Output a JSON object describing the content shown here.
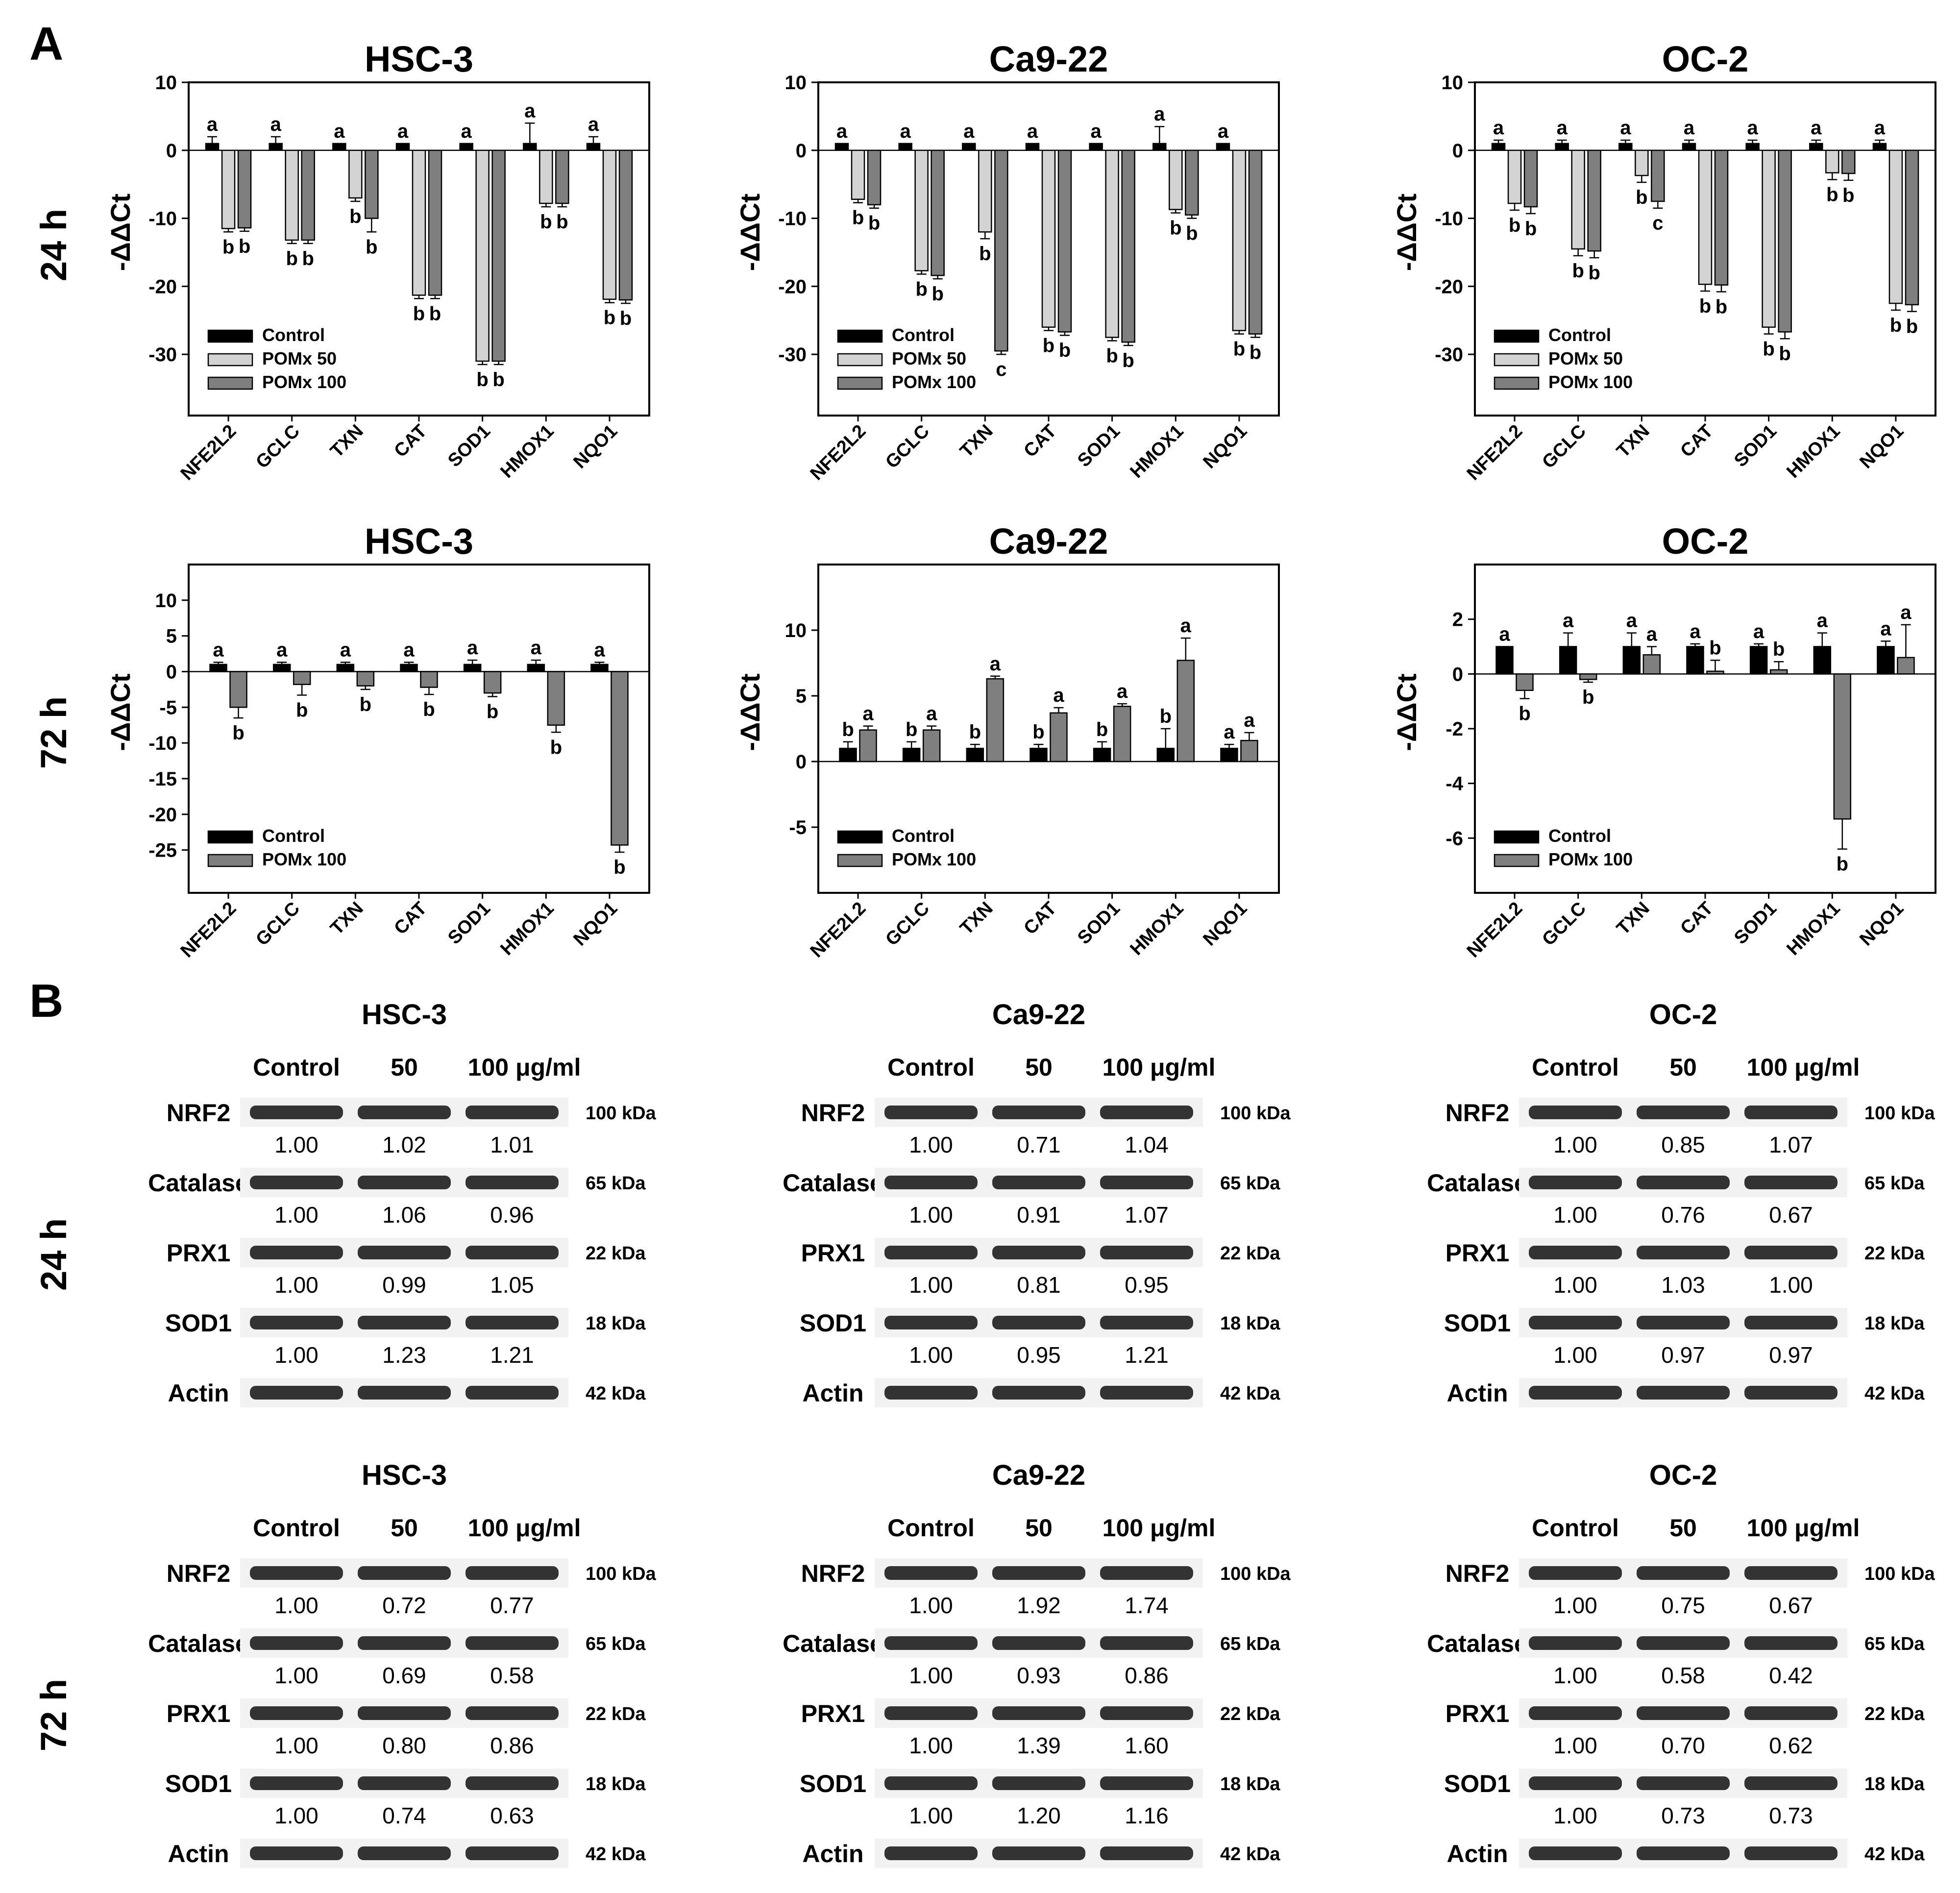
{
  "panels": {
    "a": "A",
    "b": "B"
  },
  "row_labels": {
    "h24": "24 h",
    "h72": "72 h"
  },
  "colors": {
    "control": "#000000",
    "pomx50": "#d3d3d3",
    "pomx100": "#7f7f7f",
    "axis": "#000000"
  },
  "chart_data": [
    {
      "type": "bar",
      "title": "HSC-3",
      "time": "24 h",
      "ylabel": "-ΔΔCt",
      "categories": [
        "NFE2L2",
        "GCLC",
        "TXN",
        "CAT",
        "SOD1",
        "HMOX1",
        "NQO1"
      ],
      "ylim": [
        -39,
        10
      ],
      "yticks": [
        10,
        0,
        -10,
        -20,
        -30
      ],
      "series": [
        {
          "name": "Control",
          "values": [
            1,
            1,
            1,
            1,
            1,
            1,
            1
          ],
          "errors": [
            1,
            1,
            0,
            0,
            0,
            3,
            1
          ],
          "letters": [
            "a",
            "a",
            "a",
            "a",
            "a",
            "a",
            "a"
          ]
        },
        {
          "name": "POMx 50",
          "values": [
            -11.5,
            -13.2,
            -7.0,
            -21.3,
            -31.0,
            -7.8,
            -21.9
          ],
          "errors": [
            0.5,
            0.5,
            0.5,
            0.5,
            0.5,
            0.5,
            0.5
          ],
          "letters": [
            "b",
            "b",
            "b",
            "b",
            "b",
            "b",
            "b"
          ]
        },
        {
          "name": "POMx 100",
          "values": [
            -11.4,
            -13.2,
            -10.0,
            -21.3,
            -31.0,
            -7.8,
            -22.0
          ],
          "errors": [
            0.5,
            0.5,
            2.0,
            0.5,
            0.5,
            0.5,
            0.5
          ],
          "letters": [
            "b",
            "b",
            "b",
            "b",
            "b",
            "b",
            "b"
          ]
        }
      ],
      "legend": [
        "Control",
        "POMx 50",
        "POMx 100"
      ]
    },
    {
      "type": "bar",
      "title": "Ca9-22",
      "time": "24 h",
      "ylabel": "-ΔΔCt",
      "categories": [
        "NFE2L2",
        "GCLC",
        "TXN",
        "CAT",
        "SOD1",
        "HMOX1",
        "NQO1"
      ],
      "ylim": [
        -39,
        10
      ],
      "yticks": [
        10,
        0,
        -10,
        -20,
        -30
      ],
      "series": [
        {
          "name": "Control",
          "values": [
            1,
            1,
            1,
            1,
            1,
            1,
            1
          ],
          "errors": [
            0,
            0,
            0,
            0,
            0,
            2.5,
            0
          ],
          "letters": [
            "a",
            "a",
            "a",
            "a",
            "a",
            "a",
            "a"
          ]
        },
        {
          "name": "POMx 50",
          "values": [
            -7.2,
            -17.7,
            -12.0,
            -26.0,
            -27.5,
            -8.7,
            -26.5
          ],
          "errors": [
            0.5,
            0.5,
            1.0,
            0.5,
            0.5,
            0.5,
            0.5
          ],
          "letters": [
            "b",
            "b",
            "b",
            "b",
            "b",
            "b",
            "b"
          ]
        },
        {
          "name": "POMx 100",
          "values": [
            -8.0,
            -18.4,
            -29.5,
            -26.7,
            -28.2,
            -9.5,
            -27.0
          ],
          "errors": [
            0.5,
            0.5,
            0.5,
            0.5,
            0.5,
            0.5,
            0.5
          ],
          "letters": [
            "b",
            "b",
            "c",
            "b",
            "b",
            "b",
            "b"
          ]
        }
      ],
      "legend": [
        "Control",
        "POMx 50",
        "POMx 100"
      ]
    },
    {
      "type": "bar",
      "title": "OC-2",
      "time": "24 h",
      "ylabel": "-ΔΔCt",
      "categories": [
        "NFE2L2",
        "GCLC",
        "TXN",
        "CAT",
        "SOD1",
        "HMOX1",
        "NQO1"
      ],
      "ylim": [
        -39,
        10
      ],
      "yticks": [
        10,
        0,
        -10,
        -20,
        -30
      ],
      "series": [
        {
          "name": "Control",
          "values": [
            1,
            1,
            1,
            1,
            1,
            1,
            1
          ],
          "errors": [
            0.5,
            0.5,
            0.5,
            0.5,
            0.5,
            0.5,
            0.5
          ],
          "letters": [
            "a",
            "a",
            "a",
            "a",
            "a",
            "a",
            "a"
          ]
        },
        {
          "name": "POMx 50",
          "values": [
            -7.8,
            -14.5,
            -3.7,
            -19.7,
            -26.0,
            -3.3,
            -22.5
          ],
          "errors": [
            1.0,
            1.0,
            1.0,
            1.0,
            1.0,
            1.0,
            1.0
          ],
          "letters": [
            "b",
            "b",
            "b",
            "b",
            "b",
            "b",
            "b"
          ]
        },
        {
          "name": "POMx 100",
          "values": [
            -8.3,
            -14.8,
            -7.5,
            -19.8,
            -26.7,
            -3.4,
            -22.7
          ],
          "errors": [
            1.0,
            1.0,
            1.0,
            1.0,
            1.0,
            1.0,
            1.0
          ],
          "letters": [
            "b",
            "b",
            "c",
            "b",
            "b",
            "b",
            "b"
          ]
        }
      ],
      "legend": [
        "Control",
        "POMx 50",
        "POMx 100"
      ]
    },
    {
      "type": "bar",
      "title": "HSC-3",
      "time": "72 h",
      "ylabel": "-ΔΔCt",
      "categories": [
        "NFE2L2",
        "GCLC",
        "TXN",
        "CAT",
        "SOD1",
        "HMOX1",
        "NQO1"
      ],
      "ylim": [
        -31,
        15
      ],
      "yticks": [
        10,
        5,
        0,
        -5,
        -10,
        -15,
        -20,
        -25
      ],
      "series": [
        {
          "name": "Control",
          "values": [
            1,
            1,
            1,
            1,
            1,
            1,
            1
          ],
          "errors": [
            0.3,
            0.3,
            0.3,
            0.3,
            0.6,
            0.6,
            0.3
          ],
          "letters": [
            "a",
            "a",
            "a",
            "a",
            "a",
            "a",
            "a"
          ]
        },
        {
          "name": "POMx 100",
          "values": [
            -5.0,
            -1.8,
            -2.0,
            -2.2,
            -3.0,
            -7.5,
            -24.3
          ],
          "errors": [
            1.5,
            1.5,
            0.5,
            1.0,
            0.5,
            1.0,
            1.0
          ],
          "letters": [
            "b",
            "b",
            "b",
            "b",
            "b",
            "b",
            "b"
          ]
        }
      ],
      "legend": [
        "Control",
        "POMx 100"
      ]
    },
    {
      "type": "bar",
      "title": "Ca9-22",
      "time": "72 h",
      "ylabel": "-ΔΔCt",
      "categories": [
        "NFE2L2",
        "GCLC",
        "TXN",
        "CAT",
        "SOD1",
        "HMOX1",
        "NQO1"
      ],
      "ylim": [
        -10,
        15
      ],
      "yticks": [
        10,
        5,
        0,
        -5
      ],
      "series": [
        {
          "name": "Control",
          "values": [
            1,
            1,
            1,
            1,
            1,
            1,
            1
          ],
          "errors": [
            0.5,
            0.5,
            0.3,
            0.3,
            0.5,
            1.5,
            0.3
          ],
          "letters": [
            "b",
            "b",
            "b",
            "b",
            "b",
            "b",
            "a"
          ]
        },
        {
          "name": "POMx 100",
          "values": [
            2.4,
            2.4,
            6.3,
            3.7,
            4.2,
            7.7,
            1.6
          ],
          "errors": [
            0.3,
            0.3,
            0.2,
            0.4,
            0.2,
            1.7,
            0.6
          ],
          "letters": [
            "a",
            "a",
            "a",
            "a",
            "a",
            "a",
            "a"
          ]
        }
      ],
      "legend": [
        "Control",
        "POMx 100"
      ]
    },
    {
      "type": "bar",
      "title": "OC-2",
      "time": "72 h",
      "ylabel": "-ΔΔCt",
      "categories": [
        "NFE2L2",
        "GCLC",
        "TXN",
        "CAT",
        "SOD1",
        "HMOX1",
        "NQO1"
      ],
      "ylim": [
        -8,
        4
      ],
      "yticks": [
        2,
        0,
        -2,
        -4,
        -6
      ],
      "series": [
        {
          "name": "Control",
          "values": [
            1,
            1,
            1,
            1,
            1,
            1,
            1
          ],
          "errors": [
            0,
            0.5,
            0.5,
            0.1,
            0.1,
            0.5,
            0.2
          ],
          "letters": [
            "a",
            "a",
            "a",
            "a",
            "a",
            "a",
            "a"
          ]
        },
        {
          "name": "POMx 100",
          "values": [
            -0.6,
            -0.2,
            0.7,
            0.1,
            0.15,
            -5.3,
            0.6
          ],
          "errors": [
            0.3,
            0.1,
            0.3,
            0.4,
            0.3,
            1.1,
            1.2
          ],
          "letters": [
            "b",
            "b",
            "a",
            "b",
            "b",
            "b",
            "a"
          ]
        }
      ],
      "legend": [
        "Control",
        "POMx 100"
      ]
    }
  ],
  "blots": [
    {
      "cell_line": "HSC-3",
      "time": "24 h",
      "header": [
        "Control",
        "50",
        "100 μg/ml"
      ],
      "rows": [
        {
          "protein": "NRF2",
          "kda": "100 kDa",
          "values": [
            "1.00",
            "1.02",
            "1.01"
          ]
        },
        {
          "protein": "Catalase",
          "kda": "65 kDa",
          "values": [
            "1.00",
            "1.06",
            "0.96"
          ]
        },
        {
          "protein": "PRX1",
          "kda": "22 kDa",
          "values": [
            "1.00",
            "0.99",
            "1.05"
          ]
        },
        {
          "protein": "SOD1",
          "kda": "18 kDa",
          "values": [
            "1.00",
            "1.23",
            "1.21"
          ]
        },
        {
          "protein": "Actin",
          "kda": "42 kDa",
          "values": []
        }
      ]
    },
    {
      "cell_line": "Ca9-22",
      "time": "24 h",
      "header": [
        "Control",
        "50",
        "100 μg/ml"
      ],
      "rows": [
        {
          "protein": "NRF2",
          "kda": "100 kDa",
          "values": [
            "1.00",
            "0.71",
            "1.04"
          ]
        },
        {
          "protein": "Catalase",
          "kda": "65 kDa",
          "values": [
            "1.00",
            "0.91",
            "1.07"
          ]
        },
        {
          "protein": "PRX1",
          "kda": "22 kDa",
          "values": [
            "1.00",
            "0.81",
            "0.95"
          ]
        },
        {
          "protein": "SOD1",
          "kda": "18 kDa",
          "values": [
            "1.00",
            "0.95",
            "1.21"
          ]
        },
        {
          "protein": "Actin",
          "kda": "42 kDa",
          "values": []
        }
      ]
    },
    {
      "cell_line": "OC-2",
      "time": "24 h",
      "header": [
        "Control",
        "50",
        "100 μg/ml"
      ],
      "rows": [
        {
          "protein": "NRF2",
          "kda": "100 kDa",
          "values": [
            "1.00",
            "0.85",
            "1.07"
          ]
        },
        {
          "protein": "Catalase",
          "kda": "65 kDa",
          "values": [
            "1.00",
            "0.76",
            "0.67"
          ]
        },
        {
          "protein": "PRX1",
          "kda": "22 kDa",
          "values": [
            "1.00",
            "1.03",
            "1.00"
          ]
        },
        {
          "protein": "SOD1",
          "kda": "18 kDa",
          "values": [
            "1.00",
            "0.97",
            "0.97"
          ]
        },
        {
          "protein": "Actin",
          "kda": "42 kDa",
          "values": []
        }
      ]
    },
    {
      "cell_line": "HSC-3",
      "time": "72 h",
      "header": [
        "Control",
        "50",
        "100 μg/ml"
      ],
      "rows": [
        {
          "protein": "NRF2",
          "kda": "100 kDa",
          "values": [
            "1.00",
            "0.72",
            "0.77"
          ]
        },
        {
          "protein": "Catalase",
          "kda": "65 kDa",
          "values": [
            "1.00",
            "0.69",
            "0.58"
          ]
        },
        {
          "protein": "PRX1",
          "kda": "22 kDa",
          "values": [
            "1.00",
            "0.80",
            "0.86"
          ]
        },
        {
          "protein": "SOD1",
          "kda": "18 kDa",
          "values": [
            "1.00",
            "0.74",
            "0.63"
          ]
        },
        {
          "protein": "Actin",
          "kda": "42 kDa",
          "values": []
        }
      ]
    },
    {
      "cell_line": "Ca9-22",
      "time": "72 h",
      "header": [
        "Control",
        "50",
        "100 μg/ml"
      ],
      "rows": [
        {
          "protein": "NRF2",
          "kda": "100 kDa",
          "values": [
            "1.00",
            "1.92",
            "1.74"
          ]
        },
        {
          "protein": "Catalase",
          "kda": "65 kDa",
          "values": [
            "1.00",
            "0.93",
            "0.86"
          ]
        },
        {
          "protein": "PRX1",
          "kda": "22 kDa",
          "values": [
            "1.00",
            "1.39",
            "1.60"
          ]
        },
        {
          "protein": "SOD1",
          "kda": "18 kDa",
          "values": [
            "1.00",
            "1.20",
            "1.16"
          ]
        },
        {
          "protein": "Actin",
          "kda": "42 kDa",
          "values": []
        }
      ]
    },
    {
      "cell_line": "OC-2",
      "time": "72 h",
      "header": [
        "Control",
        "50",
        "100 μg/ml"
      ],
      "rows": [
        {
          "protein": "NRF2",
          "kda": "100 kDa",
          "values": [
            "1.00",
            "0.75",
            "0.67"
          ]
        },
        {
          "protein": "Catalase",
          "kda": "65 kDa",
          "values": [
            "1.00",
            "0.58",
            "0.42"
          ]
        },
        {
          "protein": "PRX1",
          "kda": "22 kDa",
          "values": [
            "1.00",
            "0.70",
            "0.62"
          ]
        },
        {
          "protein": "SOD1",
          "kda": "18 kDa",
          "values": [
            "1.00",
            "0.73",
            "0.73"
          ]
        },
        {
          "protein": "Actin",
          "kda": "42 kDa",
          "values": []
        }
      ]
    }
  ]
}
